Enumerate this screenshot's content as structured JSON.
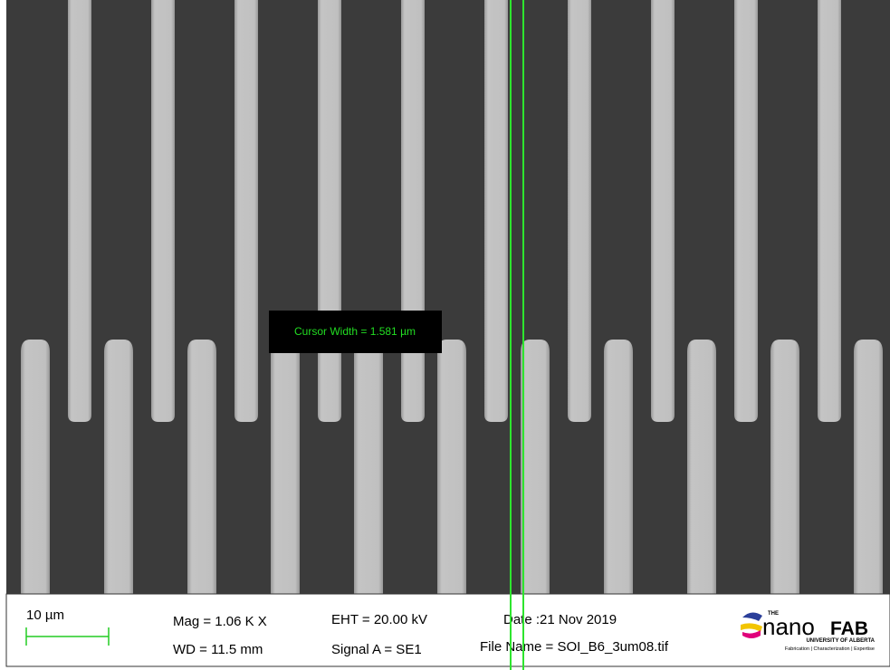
{
  "overlay": {
    "cursor_label": "Cursor Width = 1.581 µm"
  },
  "info_bar": {
    "scale_bar": "10 µm",
    "mag": "Mag =  1.06 K X",
    "wd": "WD = 11.5 mm",
    "eht": "EHT = 20.00 kV",
    "signal": "Signal A = SE1",
    "date": "Date :21 Nov 2019",
    "file_name": "File Name = SOI_B6_3um08.tif"
  },
  "logo": {
    "the": "THE",
    "name_a": "nano",
    "name_b": "FAB",
    "university": "UNIVERSITY OF ALBERTA",
    "tagline": "Fabrication | Characterization | Expertise"
  }
}
